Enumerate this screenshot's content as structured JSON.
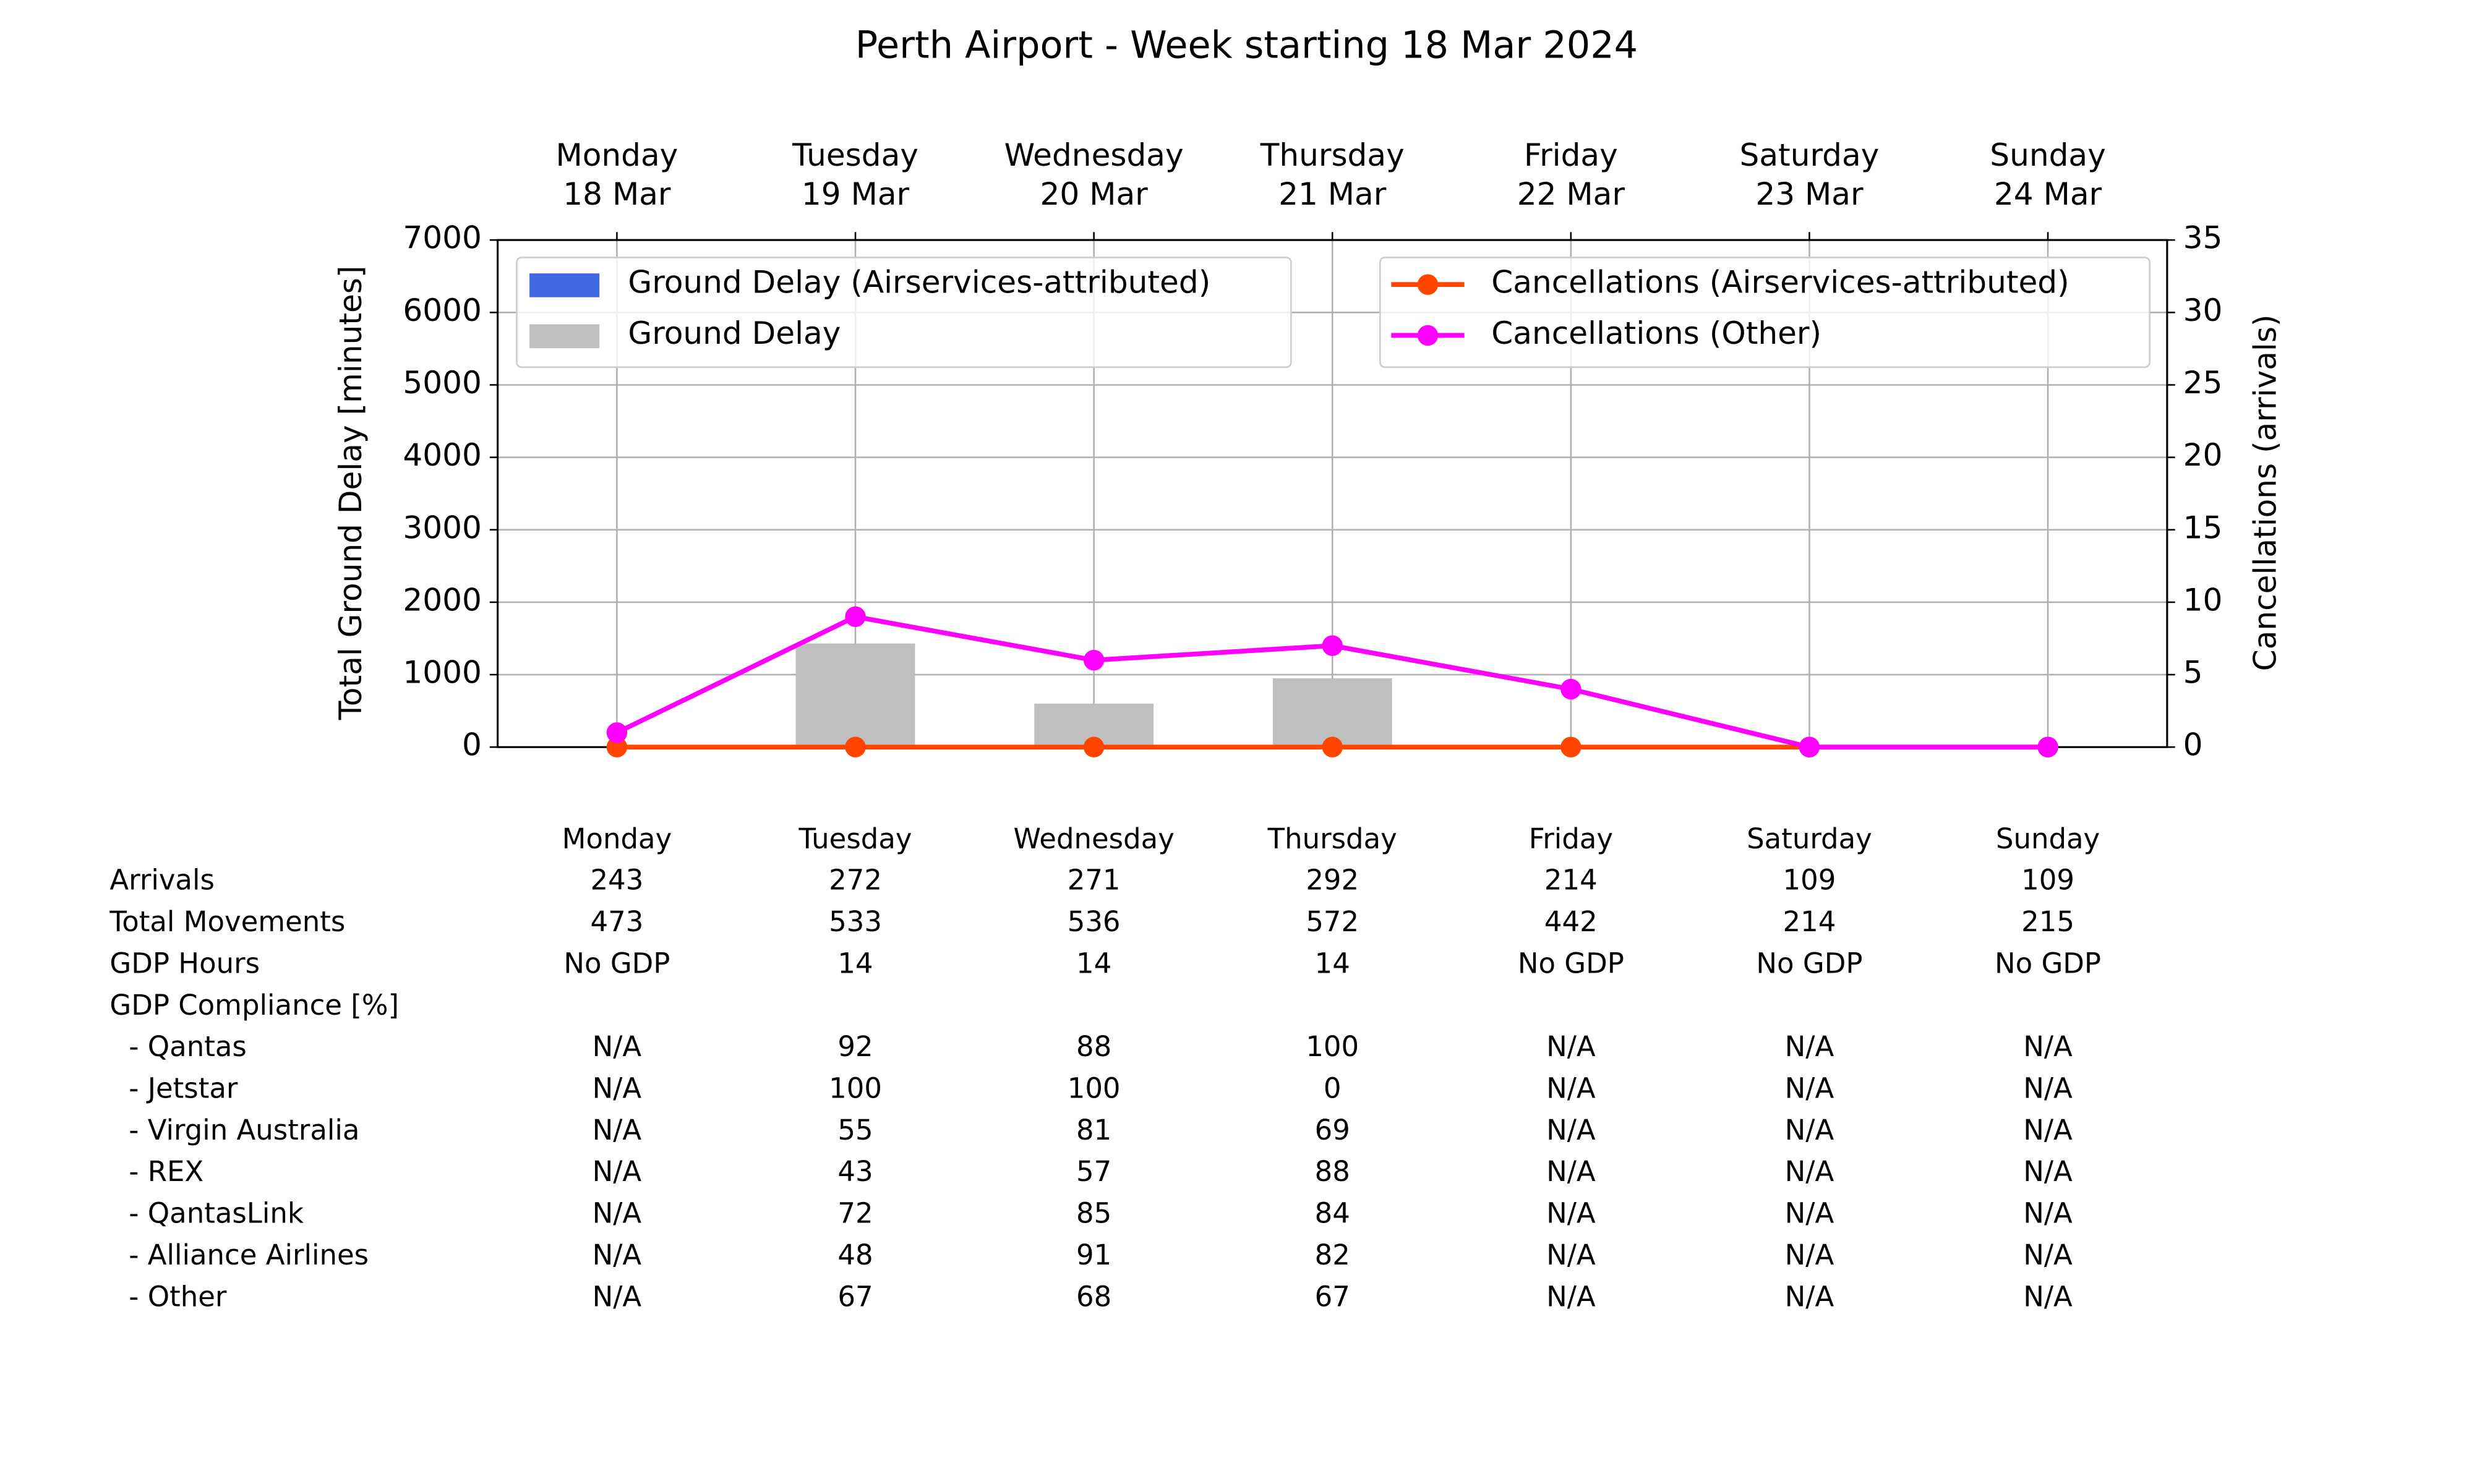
{
  "chart_data": {
    "type": "bar_line",
    "title": "Perth Airport - Week starting 18 Mar 2024",
    "categories": [
      [
        "Monday",
        "18 Mar"
      ],
      [
        "Tuesday",
        "19 Mar"
      ],
      [
        "Wednesday",
        "20 Mar"
      ],
      [
        "Thursday",
        "21 Mar"
      ],
      [
        "Friday",
        "22 Mar"
      ],
      [
        "Saturday",
        "23 Mar"
      ],
      [
        "Sunday",
        "24 Mar"
      ]
    ],
    "y_label": "Total Ground Delay [minutes]",
    "y2_label": "Cancellations (arrivals)",
    "ylim": [
      0,
      7000
    ],
    "yticks": [
      0,
      1000,
      2000,
      3000,
      4000,
      5000,
      6000,
      7000
    ],
    "y2lim": [
      0,
      35
    ],
    "y2ticks": [
      0,
      5,
      10,
      15,
      20,
      25,
      30,
      35
    ],
    "grid": true,
    "legend_loc": "upper left",
    "legend2_loc": "upper right",
    "series": [
      {
        "name": "Ground Delay (Airservices-attributed)",
        "type": "bar",
        "color": "#4169e1",
        "values": [
          0,
          0,
          0,
          0,
          0,
          0,
          0
        ]
      },
      {
        "name": "Ground Delay",
        "type": "bar",
        "color": "#bfbfbf",
        "values": [
          0,
          1430,
          600,
          950,
          0,
          0,
          0
        ]
      },
      {
        "name": "Cancellations (Airservices-attributed)",
        "type": "line",
        "axis": "y2",
        "color": "#ff4500",
        "values": [
          0,
          0,
          0,
          0,
          0,
          0,
          0
        ]
      },
      {
        "name": "Cancellations (Other)",
        "type": "line",
        "axis": "y2",
        "color": "#ff00ff",
        "values": [
          1,
          9,
          6,
          7,
          4,
          0,
          0
        ]
      }
    ]
  },
  "table": {
    "columns": [
      "Monday",
      "Tuesday",
      "Wednesday",
      "Thursday",
      "Friday",
      "Saturday",
      "Sunday"
    ],
    "rows": [
      {
        "label": "Arrivals",
        "values": [
          243,
          272,
          271,
          292,
          214,
          109,
          109
        ]
      },
      {
        "label": "Total Movements",
        "values": [
          473,
          533,
          536,
          572,
          442,
          214,
          215
        ]
      },
      {
        "label": "GDP Hours",
        "values": [
          "No GDP",
          14,
          14,
          14,
          "No GDP",
          "No GDP",
          "No GDP"
        ]
      },
      {
        "label": "GDP Compliance [%]",
        "values": []
      },
      {
        "label": "- Qantas",
        "values": [
          "N/A",
          92,
          88,
          100,
          "N/A",
          "N/A",
          "N/A"
        ]
      },
      {
        "label": "- Jetstar",
        "values": [
          "N/A",
          100,
          100,
          0,
          "N/A",
          "N/A",
          "N/A"
        ]
      },
      {
        "label": "- Virgin Australia",
        "values": [
          "N/A",
          55,
          81,
          69,
          "N/A",
          "N/A",
          "N/A"
        ]
      },
      {
        "label": "- REX",
        "values": [
          "N/A",
          43,
          57,
          88,
          "N/A",
          "N/A",
          "N/A"
        ]
      },
      {
        "label": "- QantasLink",
        "values": [
          "N/A",
          72,
          85,
          84,
          "N/A",
          "N/A",
          "N/A"
        ]
      },
      {
        "label": "- Alliance Airlines",
        "values": [
          "N/A",
          48,
          91,
          82,
          "N/A",
          "N/A",
          "N/A"
        ]
      },
      {
        "label": "- Other",
        "values": [
          "N/A",
          67,
          68,
          67,
          "N/A",
          "N/A",
          "N/A"
        ]
      }
    ]
  }
}
